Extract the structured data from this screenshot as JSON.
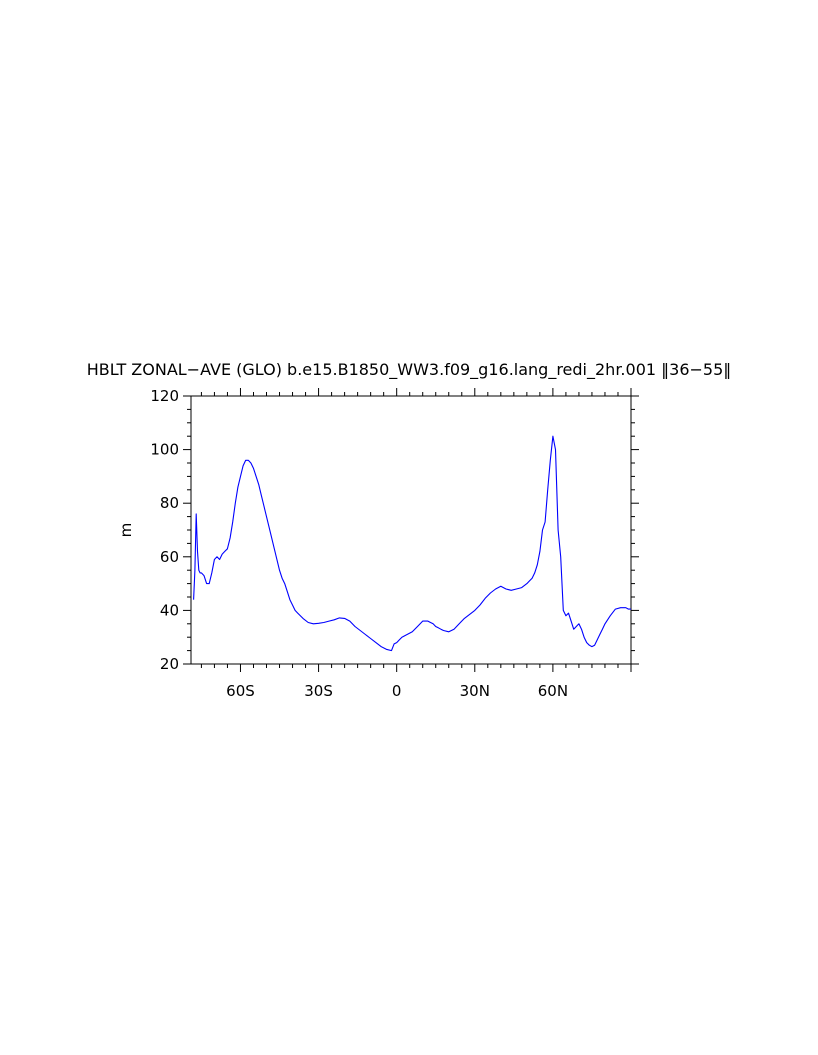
{
  "chart_data": {
    "type": "line",
    "title": "HBLT ZONAL−AVE (GLO) b.e15.B1850_WW3.f09_g16.lang_redi_2hr.001 ‖36−55‖",
    "xlabel": "",
    "ylabel": "m",
    "xlim": [
      -79,
      90
    ],
    "ylim": [
      20,
      120
    ],
    "xticks": [
      {
        "value": -60,
        "label": "60S"
      },
      {
        "value": -30,
        "label": "30S"
      },
      {
        "value": 0,
        "label": "0"
      },
      {
        "value": 30,
        "label": "30N"
      },
      {
        "value": 60,
        "label": "60N"
      }
    ],
    "yticks": [
      {
        "value": 20,
        "label": "20"
      },
      {
        "value": 40,
        "label": "40"
      },
      {
        "value": 60,
        "label": "60"
      },
      {
        "value": 80,
        "label": "80"
      },
      {
        "value": 100,
        "label": "100"
      },
      {
        "value": 120,
        "label": "120"
      }
    ],
    "grid": false,
    "line_color": "#0000ff",
    "series": [
      {
        "x": [
          -78,
          -77.5,
          -77,
          -76.5,
          -76,
          -75.5,
          -75,
          -74,
          -73,
          -72,
          -71,
          -70,
          -69,
          -68,
          -67,
          -66,
          -65,
          -64,
          -63,
          -62,
          -61,
          -60,
          -59,
          -58,
          -57,
          -56,
          -55,
          -54,
          -53,
          -52,
          -51,
          -50,
          -49,
          -48,
          -47,
          -46,
          -45,
          -44,
          -43,
          -42,
          -41,
          -40,
          -39,
          -38,
          -36,
          -34,
          -32,
          -30,
          -28,
          -26,
          -24,
          -22,
          -20,
          -18,
          -16,
          -14,
          -12,
          -10,
          -8,
          -6,
          -4,
          -2,
          -1,
          0,
          1,
          2,
          4,
          6,
          8,
          10,
          12,
          13,
          14,
          15,
          16,
          17,
          18,
          20,
          22,
          24,
          26,
          28,
          30,
          32,
          34,
          36,
          38,
          40,
          42,
          44,
          46,
          48,
          50,
          51,
          52,
          53,
          54,
          55,
          56,
          57,
          58,
          59,
          60,
          61,
          62,
          63,
          64,
          65,
          66,
          67,
          68,
          69,
          70,
          71,
          72,
          73,
          74,
          75,
          76,
          77,
          78,
          79,
          80,
          82,
          84,
          86,
          88,
          89,
          90
        ],
        "y": [
          44,
          55,
          76,
          62,
          55,
          54,
          54,
          53,
          50,
          50,
          54,
          59,
          60,
          59,
          61,
          62,
          63,
          67,
          73,
          80,
          86,
          90,
          94,
          96,
          96,
          95,
          93,
          90,
          87,
          83,
          79,
          75,
          71,
          67,
          63,
          59,
          55,
          52,
          50,
          47,
          44,
          42,
          40,
          39,
          37,
          35.5,
          35,
          35.2,
          35.5,
          36,
          36.5,
          37.2,
          37,
          36,
          34,
          32.5,
          31,
          29.5,
          28,
          26.5,
          25.5,
          25,
          27.5,
          28,
          29,
          30,
          31,
          32,
          34,
          36,
          36,
          35.5,
          35,
          34,
          33.5,
          33,
          32.5,
          32,
          33,
          35,
          37,
          38.5,
          40,
          42,
          44.5,
          46.5,
          48,
          49,
          48,
          47.5,
          48,
          48.5,
          50,
          51,
          52,
          54,
          57,
          62,
          70,
          73,
          85,
          96,
          105,
          100,
          70,
          60,
          40,
          38,
          39,
          36,
          33,
          34,
          35,
          33,
          30,
          28,
          27,
          26.5,
          27,
          29,
          31,
          33,
          35,
          38,
          40.5,
          41,
          41,
          40.5,
          40.5
        ]
      }
    ]
  }
}
